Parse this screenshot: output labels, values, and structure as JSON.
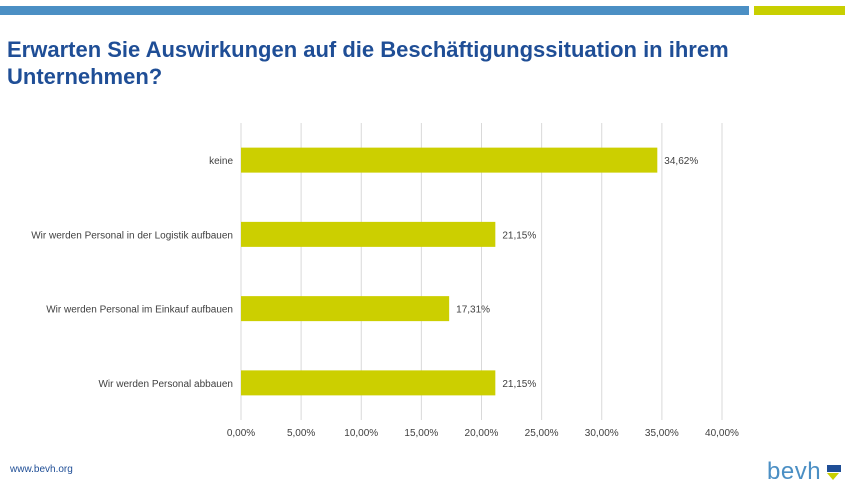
{
  "header": {
    "title": "Erwarten Sie Auswirkungen auf die Beschäftigungssituation in ihrem Unternehmen?"
  },
  "footer": {
    "url": "www.bevh.org",
    "logo_text": "bevh"
  },
  "colors": {
    "bar": "#cccf00",
    "accent_blue": "#4b8fc4",
    "title": "#1f4e96",
    "grid": "#d9d9d9"
  },
  "chart_data": {
    "type": "bar",
    "orientation": "horizontal",
    "categories": [
      "keine",
      "Wir werden Personal in der Logistik aufbauen",
      "Wir werden Personal im Einkauf aufbauen",
      "Wir werden Personal abbauen"
    ],
    "values": [
      34.62,
      21.15,
      17.31,
      21.15
    ],
    "data_labels": [
      "34,62%",
      "21,15%",
      "17,31%",
      "21,15%"
    ],
    "x_ticks": [
      "0,00%",
      "5,00%",
      "10,00%",
      "15,00%",
      "20,00%",
      "25,00%",
      "30,00%",
      "35,00%",
      "40,00%"
    ],
    "xlim": [
      0,
      40
    ],
    "grid": true,
    "legend": "none"
  }
}
